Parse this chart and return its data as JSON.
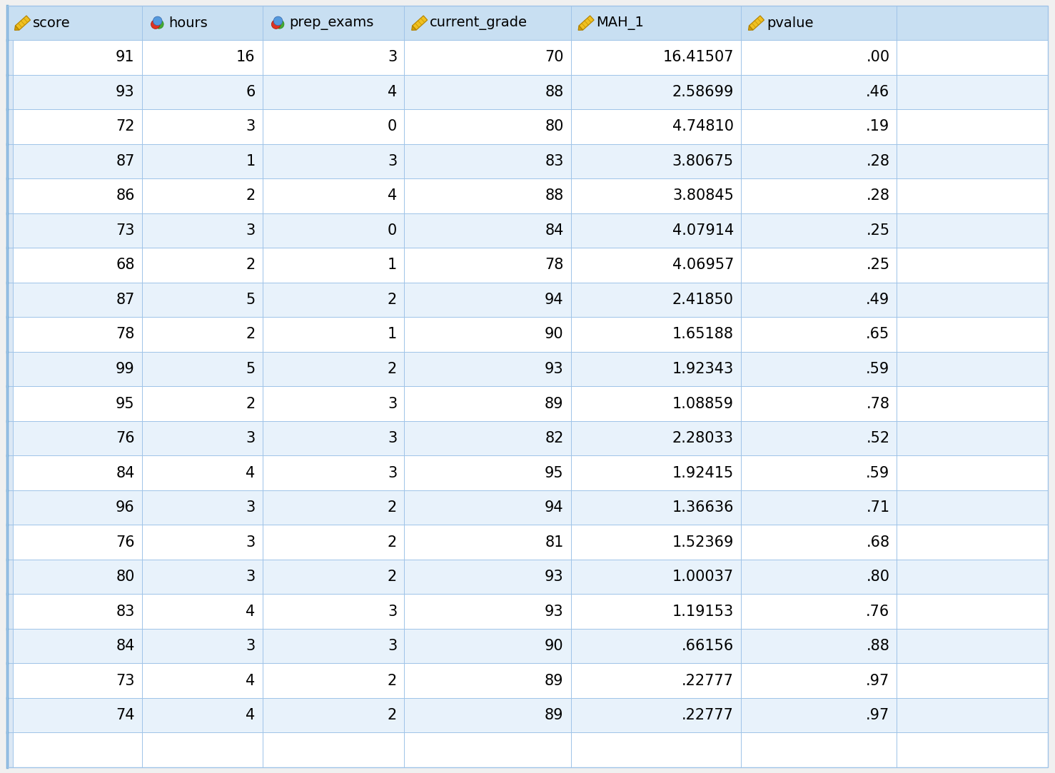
{
  "columns": [
    "score",
    "hours",
    "prep_exams",
    "current_grade",
    "MAH_1",
    "pvalue",
    ""
  ],
  "col_icons": [
    "yellow_pencil",
    "balls_3",
    "balls_3",
    "yellow_pencil",
    "yellow_pencil",
    "yellow_pencil",
    "none"
  ],
  "rows": [
    [
      91,
      16,
      3,
      70,
      "16.41507",
      ".00"
    ],
    [
      93,
      6,
      4,
      88,
      "2.58699",
      ".46"
    ],
    [
      72,
      3,
      0,
      80,
      "4.74810",
      ".19"
    ],
    [
      87,
      1,
      3,
      83,
      "3.80675",
      ".28"
    ],
    [
      86,
      2,
      4,
      88,
      "3.80845",
      ".28"
    ],
    [
      73,
      3,
      0,
      84,
      "4.07914",
      ".25"
    ],
    [
      68,
      2,
      1,
      78,
      "4.06957",
      ".25"
    ],
    [
      87,
      5,
      2,
      94,
      "2.41850",
      ".49"
    ],
    [
      78,
      2,
      1,
      90,
      "1.65188",
      ".65"
    ],
    [
      99,
      5,
      2,
      93,
      "1.92343",
      ".59"
    ],
    [
      95,
      2,
      3,
      89,
      "1.08859",
      ".78"
    ],
    [
      76,
      3,
      3,
      82,
      "2.28033",
      ".52"
    ],
    [
      84,
      4,
      3,
      95,
      "1.92415",
      ".59"
    ],
    [
      96,
      3,
      2,
      94,
      "1.36636",
      ".71"
    ],
    [
      76,
      3,
      2,
      81,
      "1.52369",
      ".68"
    ],
    [
      80,
      3,
      2,
      93,
      "1.00037",
      ".80"
    ],
    [
      83,
      4,
      3,
      93,
      "1.19153",
      ".76"
    ],
    [
      84,
      3,
      3,
      90,
      ".66156",
      ".88"
    ],
    [
      73,
      4,
      2,
      89,
      ".22777",
      ".97"
    ],
    [
      74,
      4,
      2,
      89,
      ".22777",
      ".97"
    ]
  ],
  "header_bg": "#c8dff2",
  "row_bg_even": "#ffffff",
  "row_bg_odd": "#e8f2fb",
  "border_color": "#a0c4e8",
  "left_col_bg": "#dce8f5",
  "header_text_color": "#000000",
  "cell_text_color": "#000000",
  "figsize": [
    14.78,
    10.83
  ],
  "dpi": 100
}
